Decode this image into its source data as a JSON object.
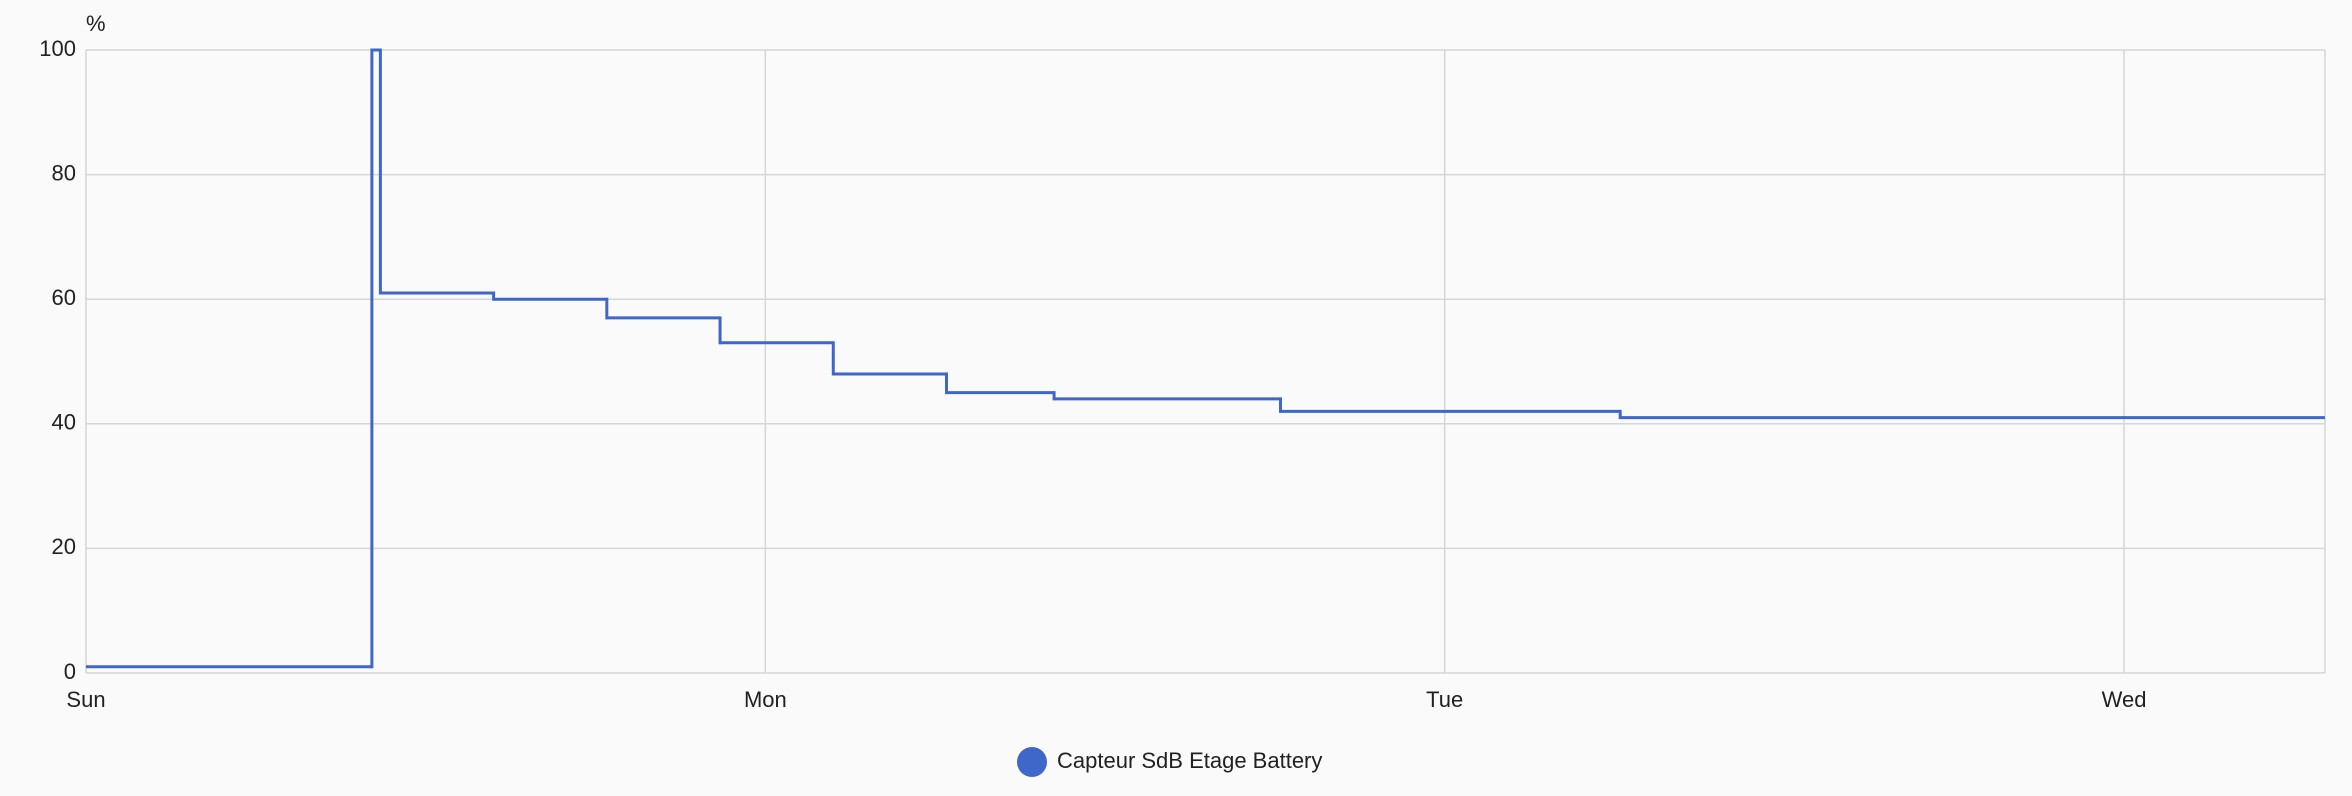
{
  "chart_data": {
    "type": "step-line",
    "y_label": "%",
    "x": [
      0,
      10.1,
      10.4,
      14.4,
      18.4,
      22.4,
      26.4,
      30.4,
      34.2,
      42.2,
      54.2
    ],
    "series": [
      {
        "name": "Capteur SdB Etage Battery",
        "color": "#3f67c9",
        "values": [
          1,
          100,
          61,
          60,
          57,
          53,
          48,
          45,
          44,
          42,
          41
        ]
      }
    ],
    "xlim": [
      0,
      79.1
    ],
    "xticks": [
      {
        "value": 0,
        "label": "Sun"
      },
      {
        "value": 24,
        "label": "Mon"
      },
      {
        "value": 48,
        "label": "Tue"
      },
      {
        "value": 72,
        "label": "Wed"
      }
    ],
    "ylim": [
      0,
      100
    ],
    "yticks": [
      0,
      20,
      40,
      60,
      80,
      100
    ],
    "grid": true,
    "legend": "bottom"
  }
}
